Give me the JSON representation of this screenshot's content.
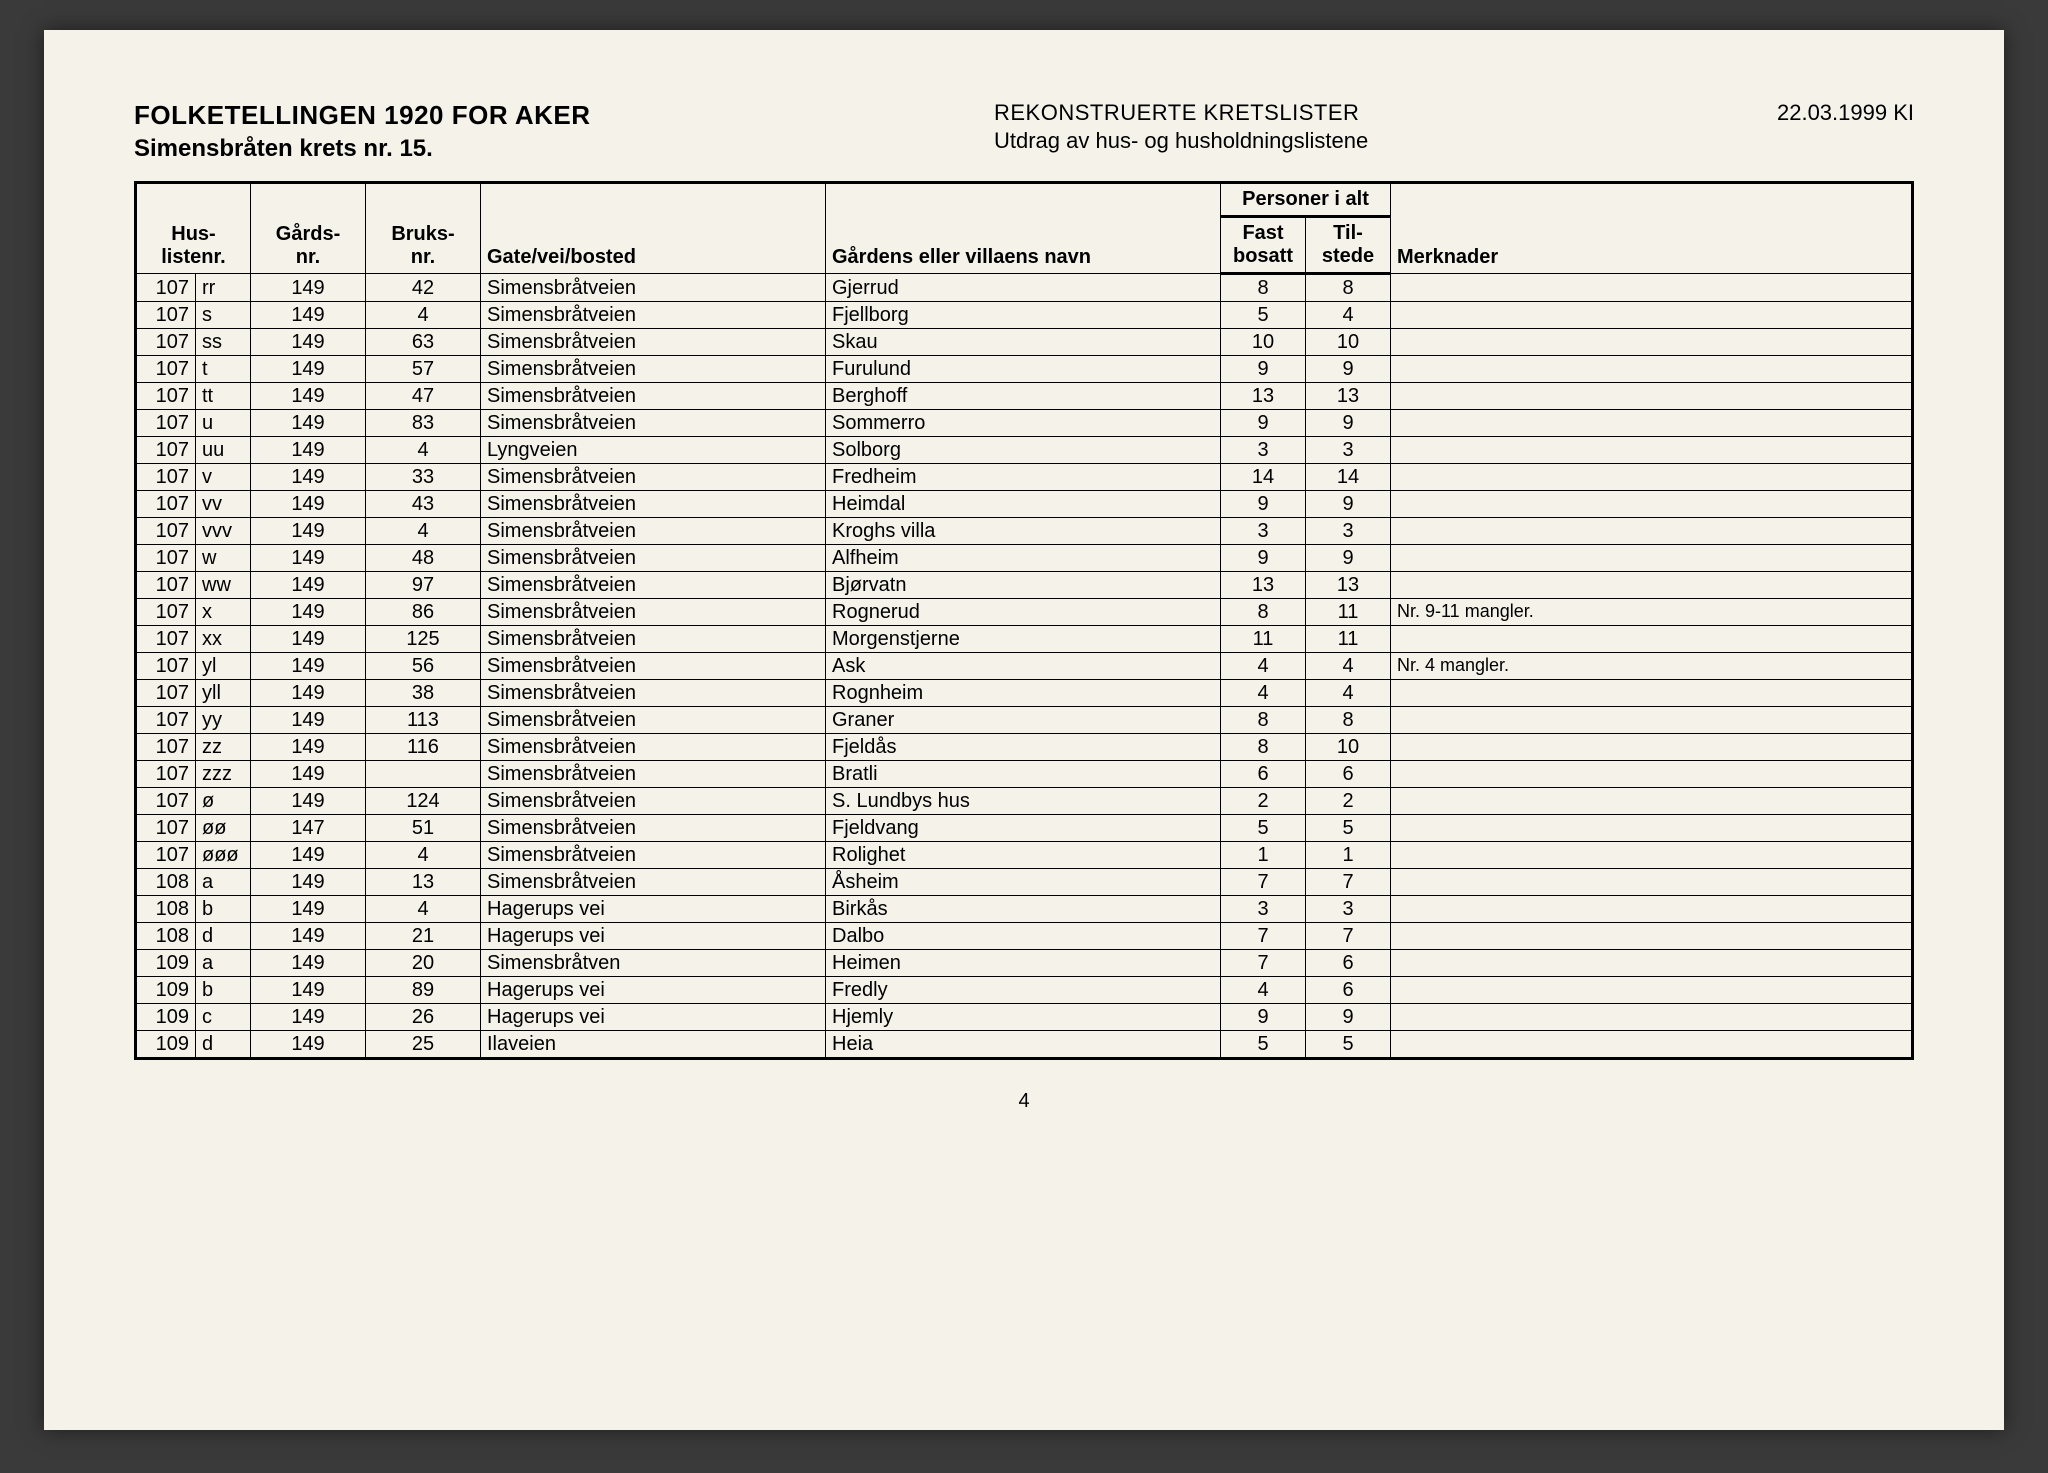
{
  "header": {
    "title_main": "FOLKETELLINGEN 1920 FOR AKER",
    "title_sub": "Simensbråten krets nr. 15.",
    "center_main": "REKONSTRUERTE KRETSLISTER",
    "center_sub": "Utdrag av hus- og husholdningslistene",
    "date": "22.03.1999 KI"
  },
  "columns": {
    "huslistenr": "Hus-\nlistenr.",
    "gardsnr": "Gårds-\nnr.",
    "bruksnr": "Bruks-\nnr.",
    "gate": "Gate/vei/bosted",
    "gardnavn": "Gårdens eller villaens navn",
    "personer": "Personer i alt",
    "fast": "Fast\nbosatt",
    "til": "Til-\nstede",
    "merknader": "Merknader"
  },
  "rows": [
    {
      "h1": "107",
      "h2": "rr",
      "gards": "149",
      "bruks": "42",
      "gate": "Simensbråtveien",
      "navn": "Gjerrud",
      "fast": "8",
      "til": "8",
      "merk": ""
    },
    {
      "h1": "107",
      "h2": "s",
      "gards": "149",
      "bruks": "4",
      "gate": "Simensbråtveien",
      "navn": "Fjellborg",
      "fast": "5",
      "til": "4",
      "merk": ""
    },
    {
      "h1": "107",
      "h2": "ss",
      "gards": "149",
      "bruks": "63",
      "gate": "Simensbråtveien",
      "navn": "Skau",
      "fast": "10",
      "til": "10",
      "merk": ""
    },
    {
      "h1": "107",
      "h2": "t",
      "gards": "149",
      "bruks": "57",
      "gate": "Simensbråtveien",
      "navn": "Furulund",
      "fast": "9",
      "til": "9",
      "merk": ""
    },
    {
      "h1": "107",
      "h2": "tt",
      "gards": "149",
      "bruks": "47",
      "gate": "Simensbråtveien",
      "navn": "Berghoff",
      "fast": "13",
      "til": "13",
      "merk": ""
    },
    {
      "h1": "107",
      "h2": "u",
      "gards": "149",
      "bruks": "83",
      "gate": "Simensbråtveien",
      "navn": "Sommerro",
      "fast": "9",
      "til": "9",
      "merk": ""
    },
    {
      "h1": "107",
      "h2": "uu",
      "gards": "149",
      "bruks": "4",
      "gate": "Lyngveien",
      "navn": "Solborg",
      "fast": "3",
      "til": "3",
      "merk": ""
    },
    {
      "h1": "107",
      "h2": "v",
      "gards": "149",
      "bruks": "33",
      "gate": "Simensbråtveien",
      "navn": "Fredheim",
      "fast": "14",
      "til": "14",
      "merk": ""
    },
    {
      "h1": "107",
      "h2": "vv",
      "gards": "149",
      "bruks": "43",
      "gate": "Simensbråtveien",
      "navn": "Heimdal",
      "fast": "9",
      "til": "9",
      "merk": ""
    },
    {
      "h1": "107",
      "h2": "vvv",
      "gards": "149",
      "bruks": "4",
      "gate": "Simensbråtveien",
      "navn": "Kroghs villa",
      "fast": "3",
      "til": "3",
      "merk": ""
    },
    {
      "h1": "107",
      "h2": "w",
      "gards": "149",
      "bruks": "48",
      "gate": "Simensbråtveien",
      "navn": "Alfheim",
      "fast": "9",
      "til": "9",
      "merk": ""
    },
    {
      "h1": "107",
      "h2": "ww",
      "gards": "149",
      "bruks": "97",
      "gate": "Simensbråtveien",
      "navn": "Bjørvatn",
      "fast": "13",
      "til": "13",
      "merk": ""
    },
    {
      "h1": "107",
      "h2": "x",
      "gards": "149",
      "bruks": "86",
      "gate": "Simensbråtveien",
      "navn": "Rognerud",
      "fast": "8",
      "til": "11",
      "merk": "Nr. 9-11 mangler."
    },
    {
      "h1": "107",
      "h2": "xx",
      "gards": "149",
      "bruks": "125",
      "gate": "Simensbråtveien",
      "navn": "Morgenstjerne",
      "fast": "11",
      "til": "11",
      "merk": ""
    },
    {
      "h1": "107",
      "h2": "yl",
      "gards": "149",
      "bruks": "56",
      "gate": "Simensbråtveien",
      "navn": "Ask",
      "fast": "4",
      "til": "4",
      "merk": "Nr. 4 mangler."
    },
    {
      "h1": "107",
      "h2": "yll",
      "gards": "149",
      "bruks": "38",
      "gate": "Simensbråtveien",
      "navn": "Rognheim",
      "fast": "4",
      "til": "4",
      "merk": ""
    },
    {
      "h1": "107",
      "h2": "yy",
      "gards": "149",
      "bruks": "113",
      "gate": "Simensbråtveien",
      "navn": "Graner",
      "fast": "8",
      "til": "8",
      "merk": ""
    },
    {
      "h1": "107",
      "h2": "zz",
      "gards": "149",
      "bruks": "116",
      "gate": "Simensbråtveien",
      "navn": "Fjeldås",
      "fast": "8",
      "til": "10",
      "merk": ""
    },
    {
      "h1": "107",
      "h2": "zzz",
      "gards": "149",
      "bruks": "",
      "gate": "Simensbråtveien",
      "navn": "Bratli",
      "fast": "6",
      "til": "6",
      "merk": ""
    },
    {
      "h1": "107",
      "h2": "ø",
      "gards": "149",
      "bruks": "124",
      "gate": "Simensbråtveien",
      "navn": "S. Lundbys hus",
      "fast": "2",
      "til": "2",
      "merk": ""
    },
    {
      "h1": "107",
      "h2": "øø",
      "gards": "147",
      "bruks": "51",
      "gate": "Simensbråtveien",
      "navn": "Fjeldvang",
      "fast": "5",
      "til": "5",
      "merk": ""
    },
    {
      "h1": "107",
      "h2": "øøø",
      "gards": "149",
      "bruks": "4",
      "gate": "Simensbråtveien",
      "navn": "Rolighet",
      "fast": "1",
      "til": "1",
      "merk": ""
    },
    {
      "h1": "108",
      "h2": "a",
      "gards": "149",
      "bruks": "13",
      "gate": "Simensbråtveien",
      "navn": "Åsheim",
      "fast": "7",
      "til": "7",
      "merk": ""
    },
    {
      "h1": "108",
      "h2": "b",
      "gards": "149",
      "bruks": "4",
      "gate": "Hagerups vei",
      "navn": "Birkås",
      "fast": "3",
      "til": "3",
      "merk": ""
    },
    {
      "h1": "108",
      "h2": "d",
      "gards": "149",
      "bruks": "21",
      "gate": "Hagerups vei",
      "navn": "Dalbo",
      "fast": "7",
      "til": "7",
      "merk": ""
    },
    {
      "h1": "109",
      "h2": "a",
      "gards": "149",
      "bruks": "20",
      "gate": "Simensbråtven",
      "navn": "Heimen",
      "fast": "7",
      "til": "6",
      "merk": ""
    },
    {
      "h1": "109",
      "h2": "b",
      "gards": "149",
      "bruks": "89",
      "gate": "Hagerups vei",
      "navn": "Fredly",
      "fast": "4",
      "til": "6",
      "merk": ""
    },
    {
      "h1": "109",
      "h2": "c",
      "gards": "149",
      "bruks": "26",
      "gate": "Hagerups vei",
      "navn": "Hjemly",
      "fast": "9",
      "til": "9",
      "merk": ""
    },
    {
      "h1": "109",
      "h2": "d",
      "gards": "149",
      "bruks": "25",
      "gate": "Ilaveien",
      "navn": "Heia",
      "fast": "5",
      "til": "5",
      "merk": ""
    }
  ],
  "page_number": "4"
}
